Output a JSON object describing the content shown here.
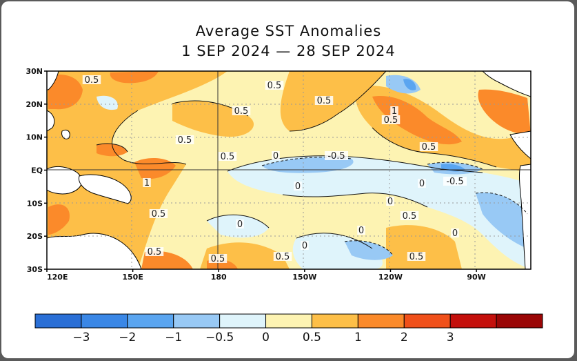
{
  "title": "Average SST Anomalies",
  "subtitle": "1 SEP 2024 — 28 SEP 2024",
  "lat_labels": [
    "30N",
    "20N",
    "10N",
    "EQ",
    "10S",
    "20S",
    "30S"
  ],
  "lon_labels": [
    "120E",
    "150E",
    "180",
    "150W",
    "120W",
    "90W"
  ],
  "contour_labels": [
    "0.5",
    "0.5",
    "0.5",
    "0.5",
    "0.5",
    "1",
    "0.5",
    "0.5",
    "0.5",
    "0",
    "-0.5",
    "1",
    "0",
    "0",
    "-0.5",
    "0.5",
    "0",
    "0.5",
    "0",
    "0",
    "0",
    "0.5",
    "0.5",
    "0.5",
    "0.5",
    "0"
  ],
  "colorbar": {
    "colors": [
      "#2a6fd6",
      "#3a87e6",
      "#5aa5f0",
      "#98c9f5",
      "#dff4fb",
      "#fdf3b2",
      "#fdbf48",
      "#fb8a2a",
      "#f0501a",
      "#c4100c",
      "#9a0606"
    ],
    "tick_labels": [
      "−3",
      "−2",
      "−1",
      "−0.5",
      "0",
      "0.5",
      "1",
      "2",
      "3"
    ]
  },
  "palette": {
    "land": "#ffffff",
    "warm_05": "#fdf3b2",
    "warm_1": "#fdbf48",
    "warm_2": "#fb8a2a",
    "cool_0": "#dff4fb",
    "cool_05": "#98c9f5",
    "cool_1": "#5aa5f0"
  }
}
